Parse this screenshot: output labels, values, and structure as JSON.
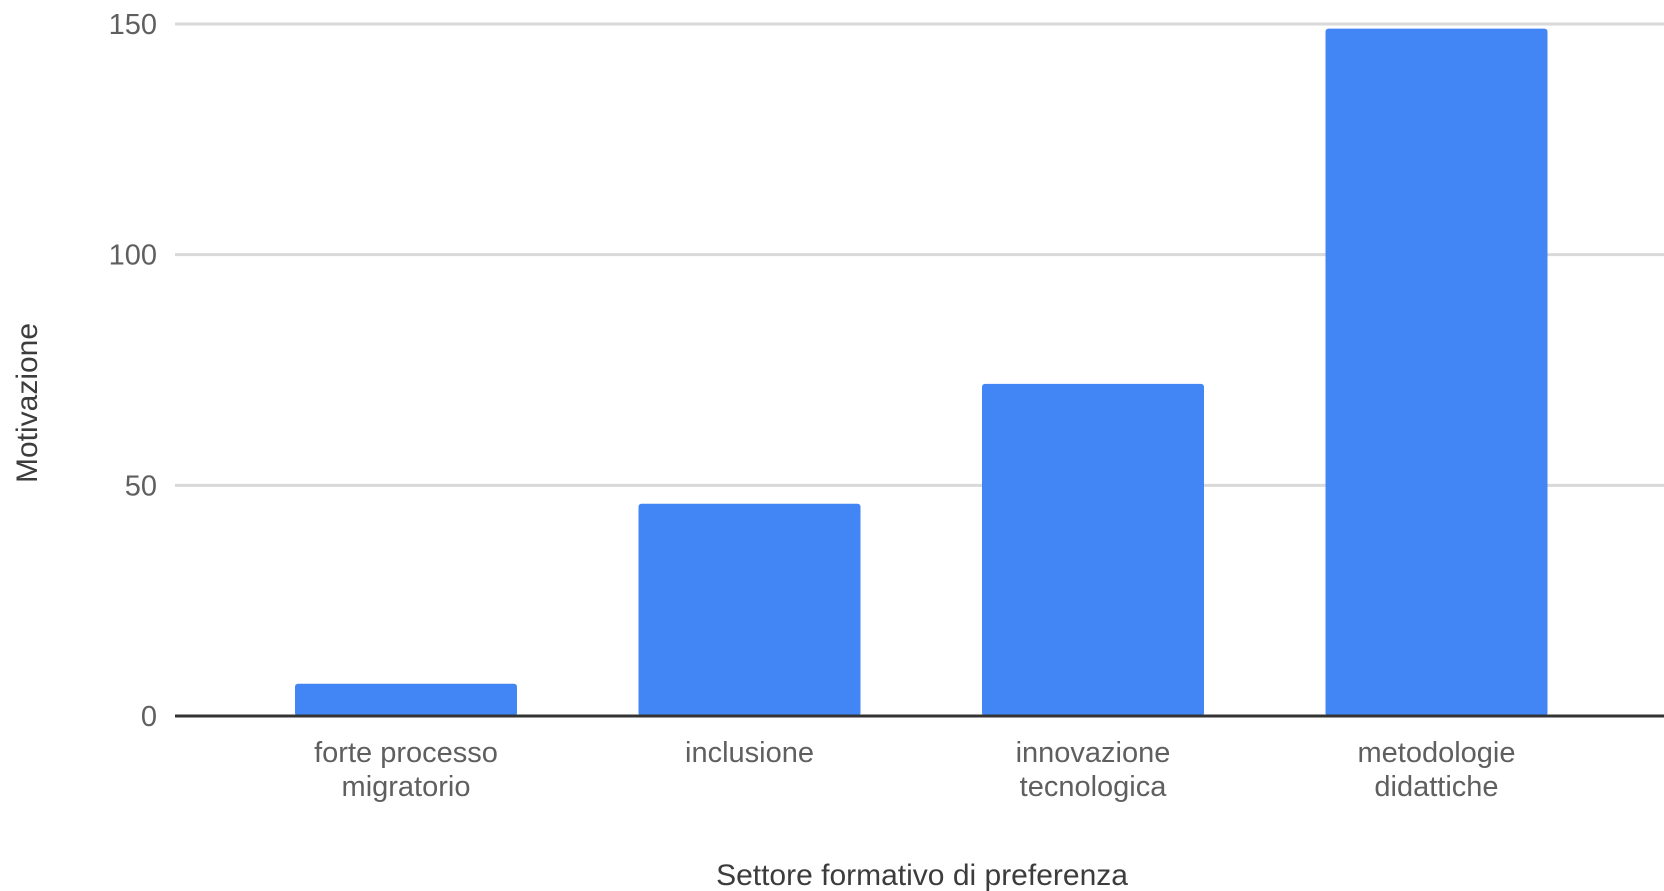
{
  "chart_data": {
    "type": "bar",
    "categories": [
      [
        "forte processo",
        "migratorio"
      ],
      [
        "inclusione"
      ],
      [
        "innovazione",
        "tecnologica"
      ],
      [
        "metodologie",
        "didattiche"
      ]
    ],
    "values": [
      7,
      46,
      72,
      149
    ],
    "xlabel": "Settore formativo di preferenza",
    "ylabel": "Motivazione",
    "ylim": [
      0,
      150
    ],
    "yticks": [
      "0",
      "50",
      "100",
      "150"
    ],
    "grid": true,
    "legend": "none",
    "colors": {
      "bar": "#4285f4",
      "grid": "#d9d9d9",
      "baseline": "#333333",
      "text": "#5f5f5f",
      "axis_title": "#3c3c3c"
    }
  }
}
